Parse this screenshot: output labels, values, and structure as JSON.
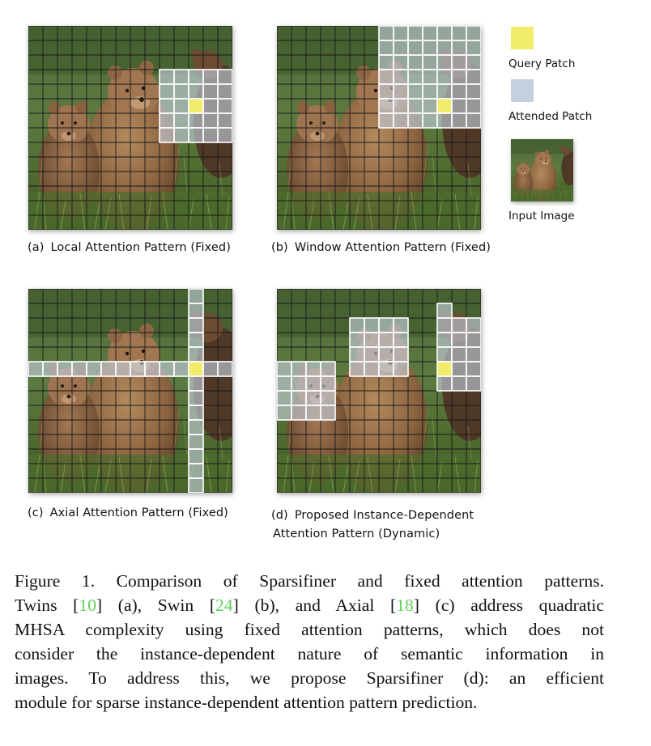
{
  "panels": [
    {
      "id": "a",
      "caption_label": "(a)",
      "caption_text": "Local Attention Pattern (Fixed)"
    },
    {
      "id": "b",
      "caption_label": "(b)",
      "caption_text": "Window Attention Pattern (Fixed)"
    },
    {
      "id": "c",
      "caption_label": "(c)",
      "caption_text": "Axial Attention Pattern (Fixed)"
    },
    {
      "id": "d",
      "caption_label": "(d)",
      "caption_text": "Proposed Instance-Dependent",
      "caption_text_2": "Attention Pattern (Dynamic)"
    }
  ],
  "legend": {
    "query_label": "Query Patch",
    "attended_label": "Attended Patch",
    "input_label": "Input Image",
    "query_color": "#f1ec6a",
    "attended_color": "#c5d0df"
  },
  "figure_caption": {
    "line1": "Figure 1.  Comparison of Sparsifiner and fixed attention patterns.",
    "line2_a": "Twins [",
    "ref1": "10",
    "line2_b": "] (a), Swin [",
    "ref2": "24",
    "line2_c": "] (b), and Axial [",
    "ref3": "18",
    "line2_d": "] (c) address quadratic",
    "line3": "MHSA complexity using fixed attention patterns, which does not",
    "line4": "consider the instance-dependent nature of semantic information in",
    "line5": "images.  To address this, we propose Sparsifiner (d):  an efficient",
    "line6": "module for sparse instance-dependent attention pattern prediction.",
    "ref_color": "#5fd35a"
  }
}
